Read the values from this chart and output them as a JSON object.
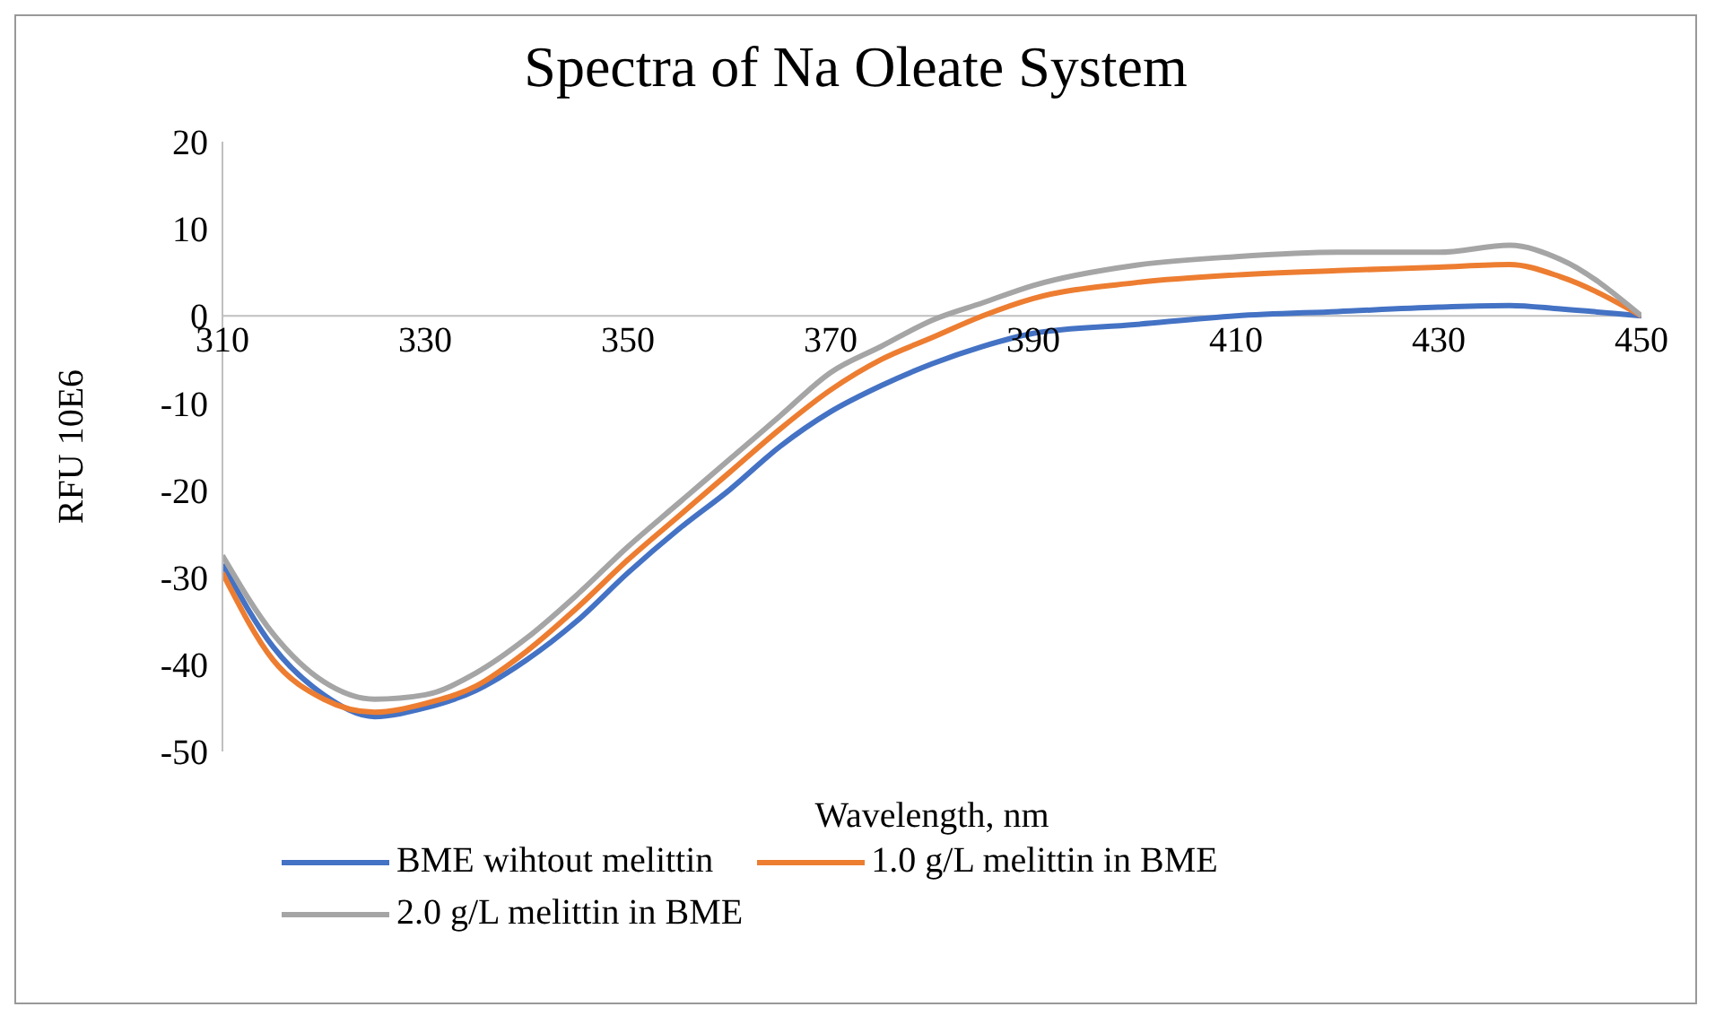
{
  "chart_data": {
    "type": "line",
    "title": "Spectra of Na Oleate System",
    "xlabel": "Wavelength, nm",
    "ylabel": "RFU 10E6",
    "x": [
      310,
      315,
      320,
      325,
      330,
      335,
      340,
      345,
      350,
      355,
      360,
      365,
      370,
      375,
      380,
      385,
      390,
      400,
      410,
      420,
      430,
      437,
      442,
      450
    ],
    "series": [
      {
        "name": "BME wihtout melittin",
        "color": "#4472c4",
        "values": [
          -28.5,
          -38,
          -43.5,
          -46,
          -45,
          -43,
          -39.5,
          -35,
          -29.5,
          -24.5,
          -20,
          -15,
          -11,
          -8,
          -5.5,
          -3.5,
          -2,
          -1,
          0,
          0.5,
          1,
          1.2,
          0.8,
          0
        ]
      },
      {
        "name": "1.0 g/L melittin in BME",
        "color": "#ed7d31",
        "values": [
          -29.5,
          -39.5,
          -44,
          -45.5,
          -44.5,
          -42.5,
          -38.5,
          -33.5,
          -28,
          -23,
          -18,
          -13,
          -8.5,
          -5,
          -2.5,
          0,
          2,
          3.8,
          4.7,
          5.2,
          5.6,
          5.9,
          4.5,
          0
        ]
      },
      {
        "name": "2.0 g/L melittin in BME",
        "color": "#a5a5a5",
        "values": [
          -27.5,
          -36.5,
          -42,
          -44,
          -43.5,
          -41,
          -37,
          -32,
          -26.5,
          -21.5,
          -16.5,
          -11.5,
          -6.5,
          -3.5,
          -0.5,
          1.5,
          3.5,
          5.8,
          6.8,
          7.3,
          7.3,
          8.1,
          6.5,
          0
        ]
      }
    ],
    "xlim": [
      310,
      450
    ],
    "xticks": [
      310,
      330,
      350,
      370,
      390,
      410,
      430,
      450
    ],
    "ylim": [
      -50,
      20
    ],
    "yticks": [
      -50,
      -40,
      -30,
      -20,
      -10,
      0,
      10,
      20
    ],
    "grid": false,
    "legend": "bottom",
    "marker": "none",
    "line_style": "solid"
  }
}
